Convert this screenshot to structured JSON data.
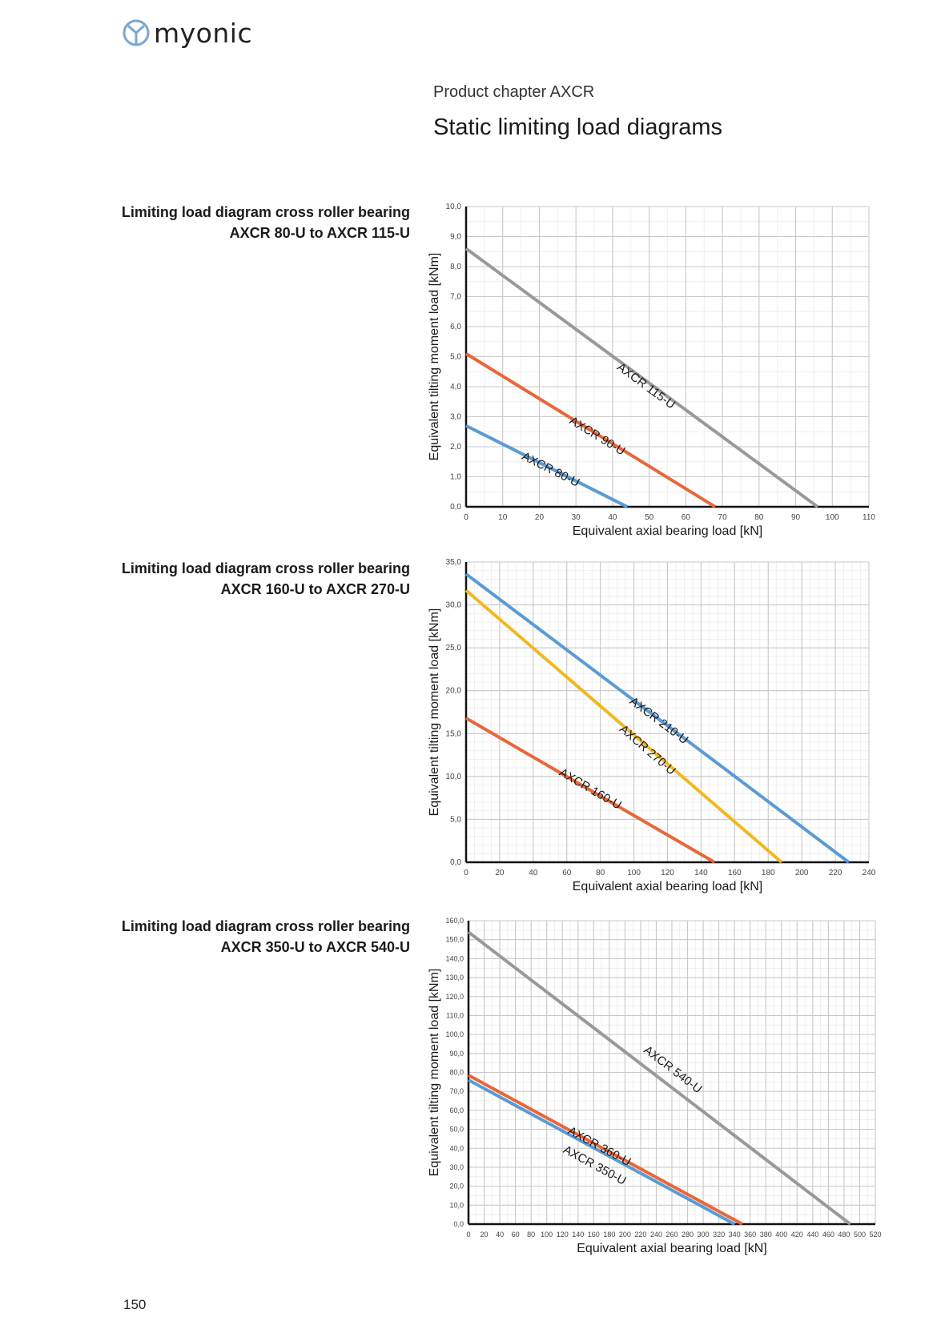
{
  "header": {
    "logo_text": "myonic",
    "chapter": "Product chapter AXCR",
    "title": "Static limiting load diagrams"
  },
  "sections": [
    {
      "caption_line1": "Limiting load diagram cross roller bearing",
      "caption_line2": "AXCR 80-U to AXCR 115-U"
    },
    {
      "caption_line1": "Limiting load diagram cross roller bearing",
      "caption_line2": "AXCR 160-U to AXCR 270-U"
    },
    {
      "caption_line1": "Limiting load diagram cross roller bearing",
      "caption_line2": "AXCR 350-U to AXCR 540-U"
    }
  ],
  "page_number": "150",
  "colors": {
    "grey": "#999999",
    "orange": "#e8673a",
    "blue": "#5b9bd5",
    "yellow": "#f2b81e"
  },
  "chart_data": [
    {
      "type": "line",
      "xlabel": "Equivalent axial bearing load [kN]",
      "ylabel": "Equivalent tilting moment load [kNm]",
      "xlim": [
        0,
        110
      ],
      "ylim": [
        0,
        10
      ],
      "x_ticks": [
        "0",
        "10",
        "20",
        "30",
        "40",
        "50",
        "60",
        "70",
        "80",
        "90",
        "100",
        "110"
      ],
      "y_ticks": [
        "0,0",
        "1,0",
        "2,0",
        "3,0",
        "4,0",
        "5,0",
        "6,0",
        "7,0",
        "8,0",
        "9,0",
        "10,0"
      ],
      "minor_x": 5,
      "minor_y": 0.5,
      "series": [
        {
          "name": "AXCR 80-U",
          "color": "#5b9bd5",
          "x": [
            0,
            44
          ],
          "y": [
            2.7,
            0
          ],
          "label_x": 15,
          "label_y": 1.6
        },
        {
          "name": "AXCR 90-U",
          "color": "#e8673a",
          "x": [
            0,
            68
          ],
          "y": [
            5.1,
            0
          ],
          "label_x": 28,
          "label_y": 2.8
        },
        {
          "name": "AXCR 115-U",
          "color": "#999999",
          "x": [
            0,
            96
          ],
          "y": [
            8.6,
            0
          ],
          "label_x": 41,
          "label_y": 4.6
        }
      ]
    },
    {
      "type": "line",
      "xlabel": "Equivalent axial bearing load [kN]",
      "ylabel": "Equivalent tilting moment load [kNm]",
      "xlim": [
        0,
        240
      ],
      "ylim": [
        0,
        35
      ],
      "x_ticks": [
        "0",
        "20",
        "40",
        "60",
        "80",
        "100",
        "120",
        "140",
        "160",
        "180",
        "200",
        "220",
        "240"
      ],
      "y_ticks": [
        "0,0",
        "5,0",
        "10,0",
        "15,0",
        "20,0",
        "25,0",
        "30,0",
        "35,0"
      ],
      "minor_x": 5,
      "minor_y": 1,
      "series": [
        {
          "name": "AXCR 160-U",
          "color": "#e8673a",
          "x": [
            0,
            148
          ],
          "y": [
            16.8,
            0
          ],
          "label_x": 55,
          "label_y": 10.2
        },
        {
          "name": "AXCR 270-U",
          "color": "#f2b81e",
          "x": [
            0,
            188
          ],
          "y": [
            31.7,
            0
          ],
          "label_x": 91,
          "label_y": 15.4
        },
        {
          "name": "AXCR 210-U",
          "color": "#5b9bd5",
          "x": [
            0,
            228
          ],
          "y": [
            33.6,
            0
          ],
          "label_x": 97,
          "label_y": 18.6
        }
      ]
    },
    {
      "type": "line",
      "xlabel": "Equivalent axial bearing load [kN]",
      "ylabel": "Equivalent tilting moment load  [kNm]",
      "xlim": [
        0,
        520
      ],
      "ylim": [
        0,
        160
      ],
      "x_ticks": [
        "0",
        "20",
        "40",
        "60",
        "80",
        "100",
        "120",
        "140",
        "160",
        "180",
        "200",
        "220",
        "240",
        "260",
        "280",
        "300",
        "320",
        "340",
        "360",
        "380",
        "400",
        "420",
        "440",
        "460",
        "480",
        "500",
        "520"
      ],
      "y_ticks": [
        "0,0",
        "10,0",
        "20,0",
        "30,0",
        "40,0",
        "50,0",
        "60,0",
        "70,0",
        "80,0",
        "90,0",
        "100,0",
        "110,0",
        "120,0",
        "130,0",
        "140,0",
        "150,0",
        "160,0"
      ],
      "minor_x": 10,
      "minor_y": 5,
      "series": [
        {
          "name": "AXCR 350-U",
          "color": "#5b9bd5",
          "x": [
            0,
            340
          ],
          "y": [
            76,
            0
          ],
          "label_x": 120,
          "label_y": 38
        },
        {
          "name": "AXCR 360-U",
          "color": "#e8673a",
          "x": [
            0,
            350
          ],
          "y": [
            78.5,
            0
          ],
          "label_x": 126,
          "label_y": 48
        },
        {
          "name": "AXCR 540-U",
          "color": "#999999",
          "x": [
            0,
            488
          ],
          "y": [
            154,
            0
          ],
          "label_x": 223,
          "label_y": 91
        }
      ]
    }
  ]
}
